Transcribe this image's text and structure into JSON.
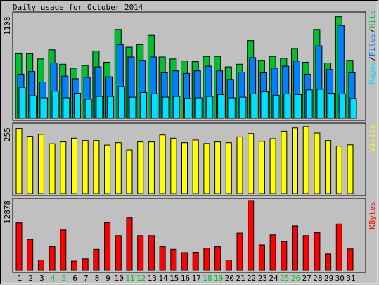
{
  "title": "Daily usage for October 2014",
  "colors": {
    "background": "#c0c0c0",
    "panel": "#c0c0c0",
    "hits": "#00c030",
    "files": "#0080ff",
    "pages": "#00e0ff",
    "visits": "#ffff00",
    "kbytes": "#ff0000",
    "weekend_label": "#00c030",
    "label": "#000000"
  },
  "legend": {
    "pages": "Pages",
    "files": "Files",
    "hits": "Hits",
    "sep": "/",
    "visits": "Visits",
    "kbytes": "KBytes"
  },
  "chart_data": {
    "type": "bar",
    "title": "Daily usage for October 2014",
    "categories": [
      "1",
      "2",
      "3",
      "4",
      "5",
      "6",
      "7",
      "8",
      "9",
      "10",
      "11",
      "12",
      "13",
      "14",
      "15",
      "16",
      "17",
      "18",
      "19",
      "20",
      "21",
      "22",
      "23",
      "24",
      "25",
      "26",
      "27",
      "28",
      "29",
      "30",
      "31"
    ],
    "weekend_days": [
      "4",
      "5",
      "11",
      "12",
      "18",
      "19",
      "25",
      "26"
    ],
    "panels": [
      {
        "id": "hits",
        "ymax_label": "1108",
        "ymax": 1108,
        "series": [
          {
            "name": "Hits",
            "values": [
              686,
              686,
              630,
              728,
              574,
              532,
              560,
              714,
              595,
              945,
              756,
              784,
              882,
              651,
              630,
              609,
              602,
              658,
              658,
              546,
              574,
              826,
              616,
              658,
              637,
              742,
              595,
              945,
              588,
              1080,
              616
            ]
          },
          {
            "name": "Files",
            "values": [
              469,
              497,
              385,
              588,
              448,
              420,
              434,
              546,
              441,
              784,
              651,
              616,
              651,
              483,
              504,
              476,
              504,
              553,
              504,
              413,
              490,
              644,
              483,
              532,
              553,
              609,
              469,
              770,
              518,
              987,
              483
            ]
          },
          {
            "name": "Pages",
            "values": [
              329,
              238,
              217,
              287,
              217,
              266,
              203,
              231,
              231,
              336,
              224,
              273,
              259,
              224,
              231,
              210,
              217,
              231,
              252,
              217,
              224,
              259,
              280,
              245,
              259,
              252,
              301,
              308,
              266,
              259,
              210
            ]
          }
        ]
      },
      {
        "id": "visits",
        "ymax_label": "255",
        "ymax": 255,
        "series": [
          {
            "name": "Visits",
            "values": [
              243,
              214,
              221,
              186,
              193,
              207,
              198,
              198,
              181,
              190,
              163,
              193,
              193,
              219,
              207,
              190,
              200,
              187,
              193,
              190,
              212,
              224,
              195,
              205,
              233,
              245,
              250,
              226,
              198,
              177,
              182
            ]
          }
        ]
      },
      {
        "id": "kbytes",
        "ymax_label": "12878",
        "ymax": 12878,
        "series": [
          {
            "name": "KBytes",
            "values": [
              8750,
              5708,
              1881,
              4339,
              7437,
              1677,
              2110,
              3864,
              8818,
              6400,
              9663,
              6400,
              6400,
              4339,
              3864,
              3254,
              3322,
              4068,
              4339,
              1881,
              6875,
              12878,
              4678,
              6536,
              5295,
              8213,
              6400,
              6943,
              3017,
              8545,
              3932
            ]
          }
        ]
      }
    ]
  }
}
